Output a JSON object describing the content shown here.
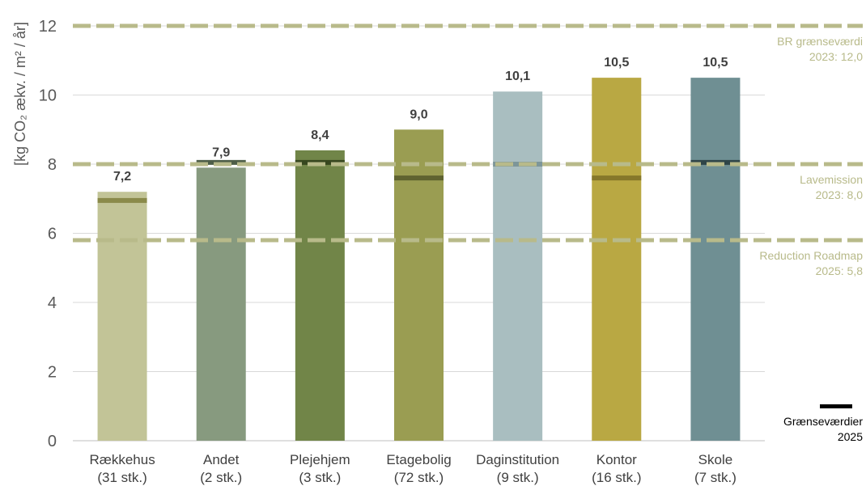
{
  "chart_data": {
    "type": "bar",
    "ylabel": "[kg CO₂ ækv. / m² / år]",
    "ylim": [
      0,
      12
    ],
    "yticks": [
      "0",
      "2",
      "4",
      "6",
      "8",
      "10",
      "12"
    ],
    "grid": true,
    "categories": [
      {
        "name": "Rækkehus",
        "count": "(31 stk.)",
        "value": 7.2,
        "value_label": "7,2",
        "limit_2025": 6.95,
        "bar_color": "#c2c497",
        "marker_color": "#8a8a4a"
      },
      {
        "name": "Andet",
        "count": "(2 stk.)",
        "value": 7.9,
        "value_label": "7,9",
        "limit_2025": 8.05,
        "bar_color": "#879a7f",
        "marker_color": "#4e5e48"
      },
      {
        "name": "Plejehjem",
        "count": "(3 stk.)",
        "value": 8.4,
        "value_label": "8,4",
        "limit_2025": 8.05,
        "bar_color": "#718548",
        "marker_color": "#37471f"
      },
      {
        "name": "Etagebolig",
        "count": "(72 stk.)",
        "value": 9.0,
        "value_label": "9,0",
        "limit_2025": 7.6,
        "bar_color": "#9a9d52",
        "marker_color": "#5f6330"
      },
      {
        "name": "Daginstitution",
        "count": "(9 stk.)",
        "value": 10.1,
        "value_label": "10,1",
        "limit_2025": 8.0,
        "bar_color": "#a9bec0",
        "marker_color": "#7d9699"
      },
      {
        "name": "Kontor",
        "count": "(16 stk.)",
        "value": 10.5,
        "value_label": "10,5",
        "limit_2025": 7.6,
        "bar_color": "#b9a843",
        "marker_color": "#86772a"
      },
      {
        "name": "Skole",
        "count": "(7 stk.)",
        "value": 10.5,
        "value_label": "10,5",
        "limit_2025": 8.05,
        "bar_color": "#6f8f93",
        "marker_color": "#2f4548"
      }
    ],
    "reference_lines": [
      {
        "value": 12.0,
        "label_line1": "BR grænseværdi",
        "label_line2": "2023: 12,0"
      },
      {
        "value": 8.0,
        "label_line1": "Lavemission",
        "label_line2": "2023: 8,0"
      },
      {
        "value": 5.8,
        "label_line1": "Reduction Roadmap",
        "label_line2": "2025: 5,8"
      }
    ],
    "reference_color": "#b8ba8a",
    "legend": {
      "label_line1": "Grænseværdier",
      "label_line2": "2025",
      "color": "#000000",
      "placement": "bottom-right"
    }
  }
}
